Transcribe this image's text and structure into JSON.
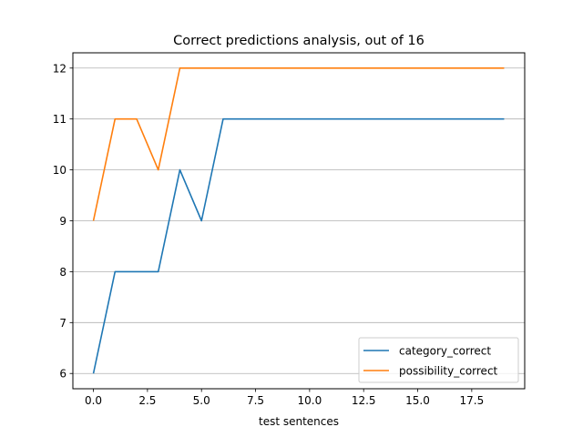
{
  "chart_data": {
    "type": "line",
    "title": "Correct predictions analysis, out of 16",
    "xlabel": "test sentences",
    "ylabel": "",
    "xlim": [
      -0.95,
      19.95
    ],
    "ylim": [
      5.7,
      12.3
    ],
    "xticks": [
      0.0,
      2.5,
      5.0,
      7.5,
      10.0,
      12.5,
      15.0,
      17.5
    ],
    "xtick_labels": [
      "0.0",
      "2.5",
      "5.0",
      "7.5",
      "10.0",
      "12.5",
      "15.0",
      "17.5"
    ],
    "yticks": [
      6,
      7,
      8,
      9,
      10,
      11,
      12
    ],
    "ytick_labels": [
      "6",
      "7",
      "8",
      "9",
      "10",
      "11",
      "12"
    ],
    "grid": "horizontal",
    "legend_position": "lower-right",
    "x": [
      0,
      1,
      2,
      3,
      4,
      5,
      6,
      7,
      8,
      9,
      10,
      11,
      12,
      13,
      14,
      15,
      16,
      17,
      18,
      19
    ],
    "series": [
      {
        "name": "category_correct",
        "color": "#1f77b4",
        "values": [
          6,
          8,
          8,
          8,
          10,
          9,
          11,
          11,
          11,
          11,
          11,
          11,
          11,
          11,
          11,
          11,
          11,
          11,
          11,
          11
        ]
      },
      {
        "name": "possibility_correct",
        "color": "#ff7f0e",
        "values": [
          9,
          11,
          11,
          10,
          12,
          12,
          12,
          12,
          12,
          12,
          12,
          12,
          12,
          12,
          12,
          12,
          12,
          12,
          12,
          12
        ]
      }
    ]
  }
}
